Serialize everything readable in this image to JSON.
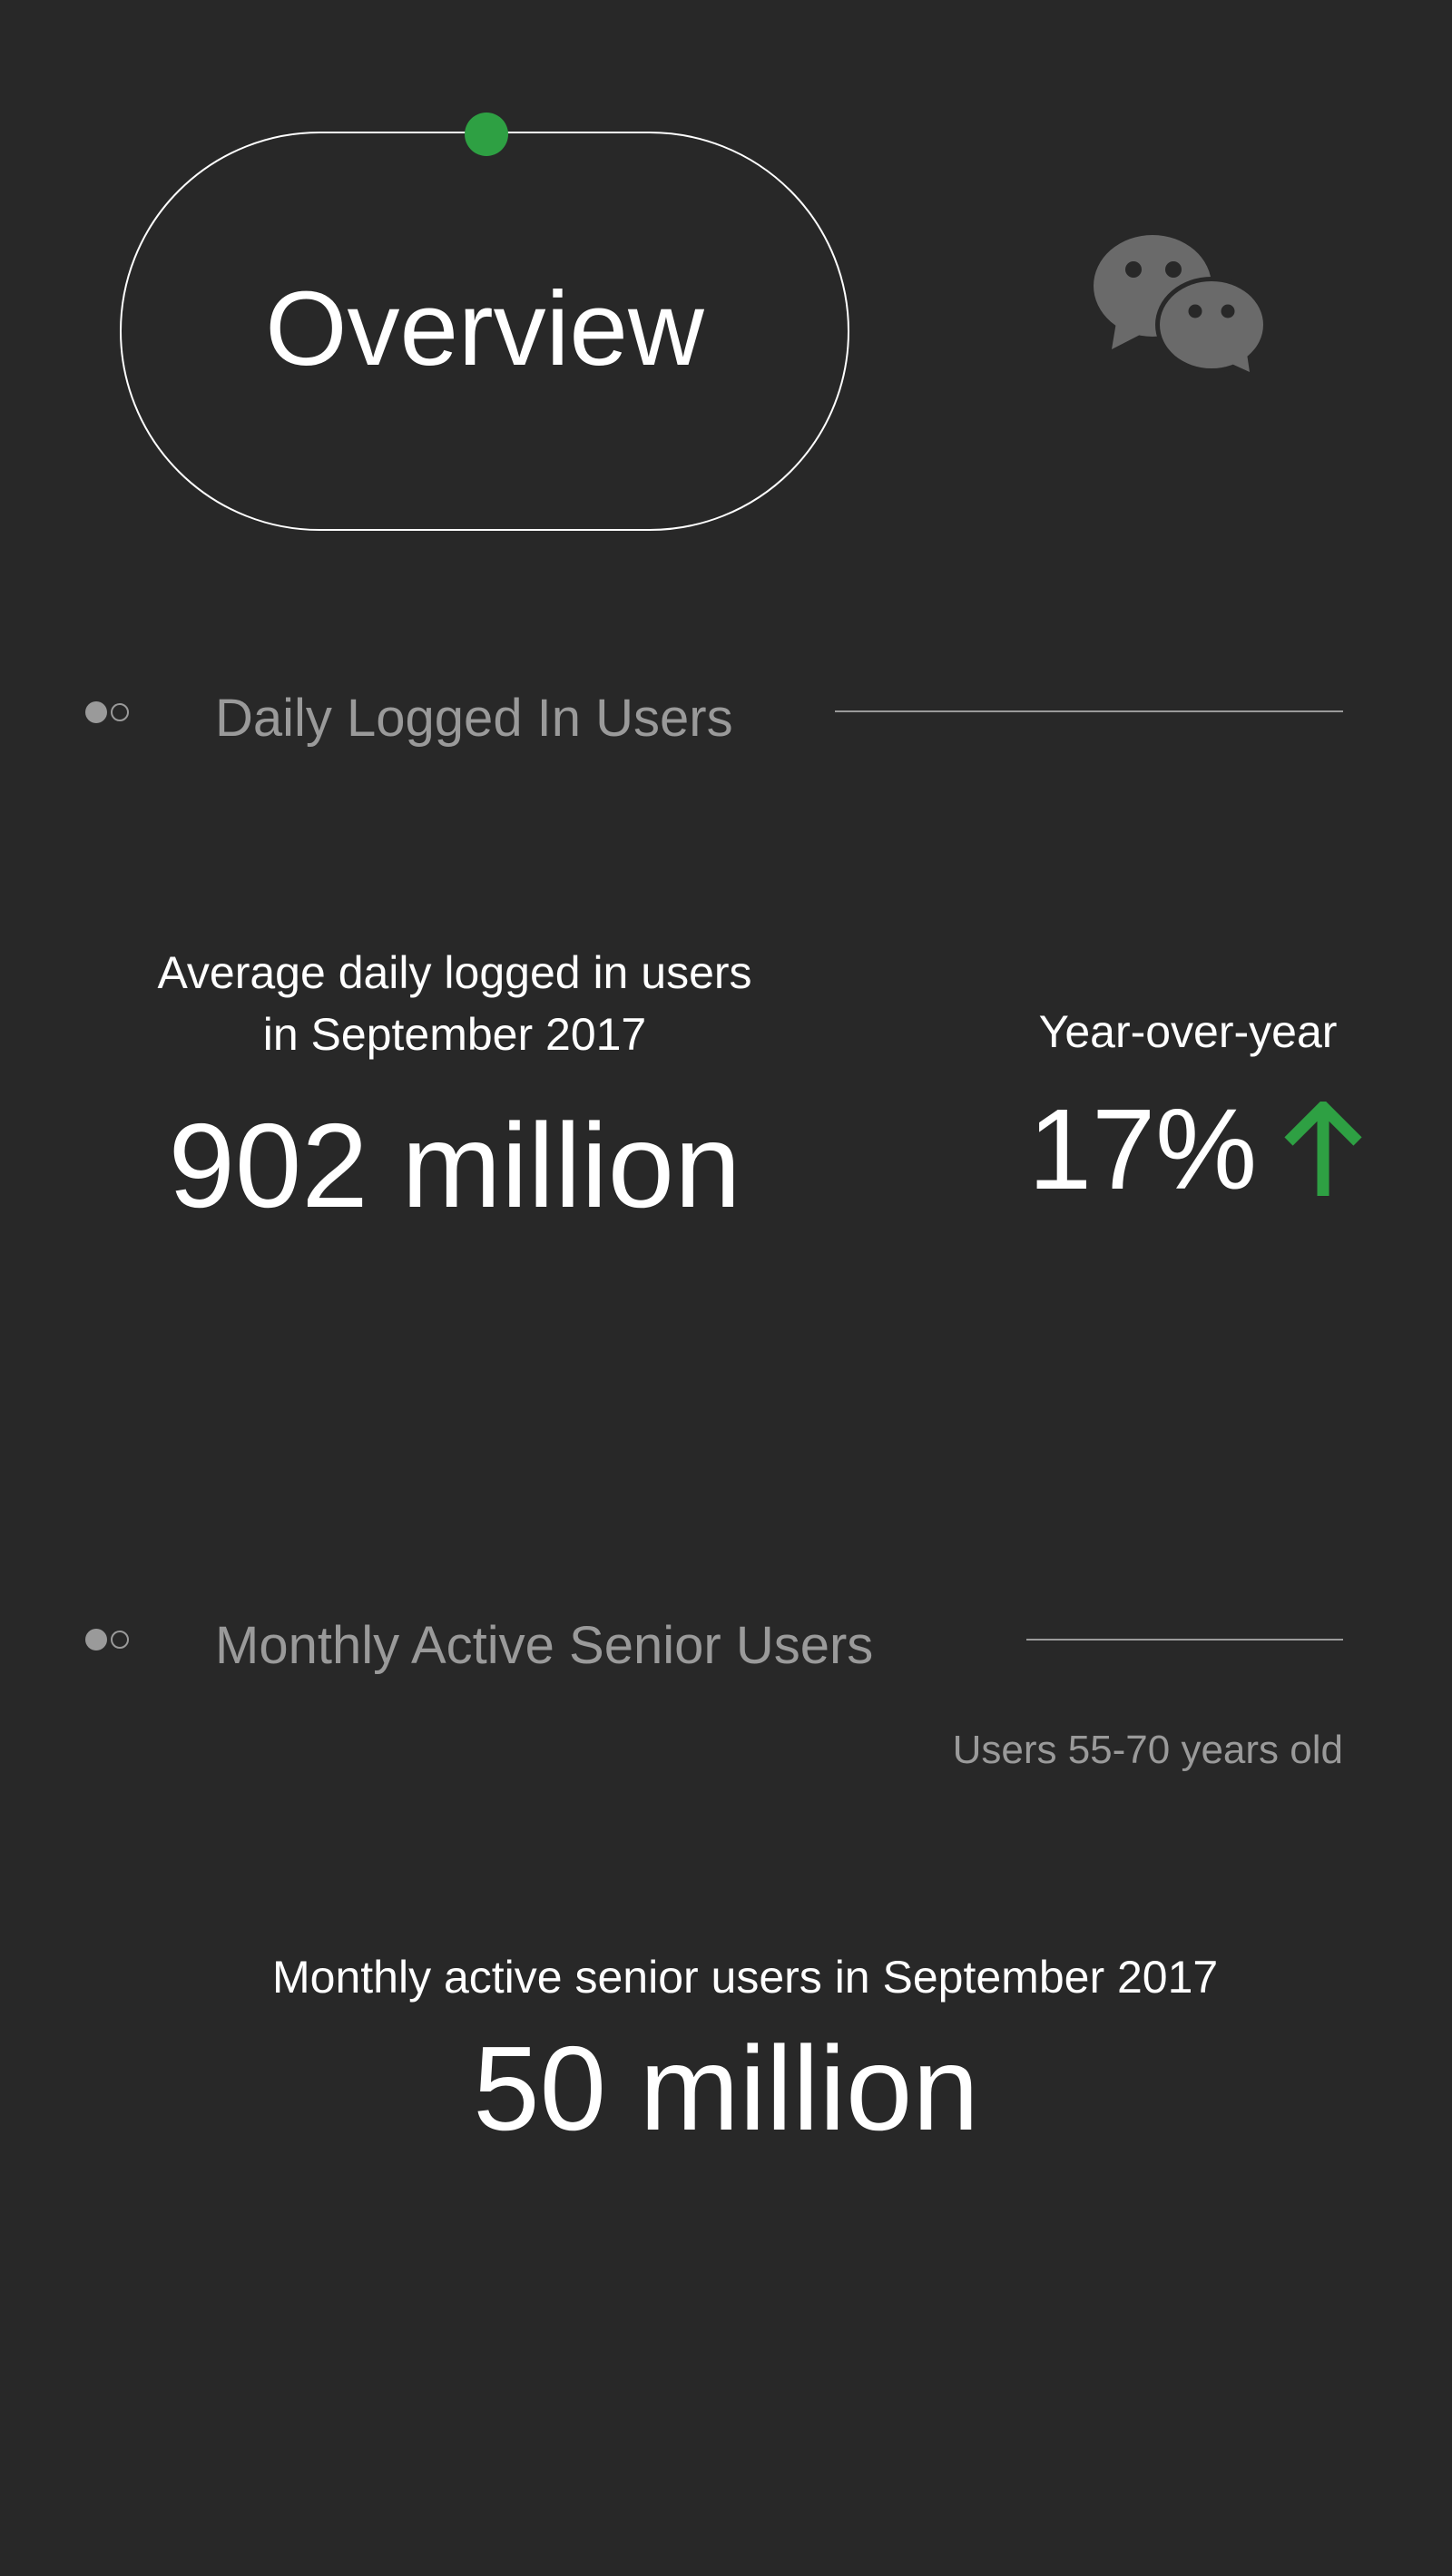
{
  "header": {
    "title": "Overview",
    "icon": "wechat-icon",
    "accent_color": "#2ea043"
  },
  "sections": [
    {
      "title": "Daily Logged In Users",
      "metric_label_lines": [
        "Average daily logged in users",
        "in September 2017"
      ],
      "metric_value": "902 million",
      "yoy_label": "Year-over-year",
      "yoy_value": "17%",
      "yoy_direction": "up"
    },
    {
      "title": "Monthly Active Senior Users",
      "note": "Users 55-70 years old",
      "metric_label": "Monthly active senior users in September 2017",
      "metric_value": "50 million"
    }
  ]
}
